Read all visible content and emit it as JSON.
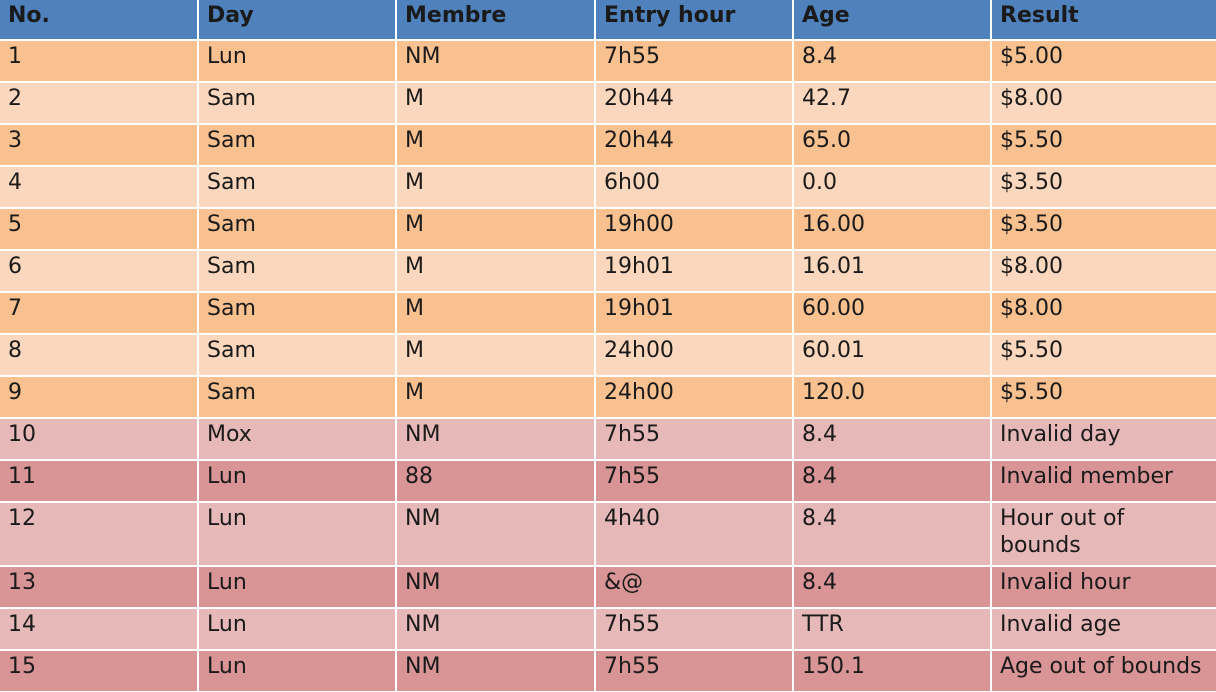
{
  "table": {
    "headers": [
      "No.",
      "Day",
      "Membre",
      "Entry hour",
      "Age",
      "Result"
    ],
    "rows": [
      {
        "no": "1",
        "day": "Lun",
        "membre": "NM",
        "entry_hour": "7h55",
        "age": "8.4",
        "result": "$5.00",
        "group": "valid",
        "shade": "odd"
      },
      {
        "no": "2",
        "day": "Sam",
        "membre": "M",
        "entry_hour": "20h44",
        "age": "42.7",
        "result": "$8.00",
        "group": "valid",
        "shade": "even"
      },
      {
        "no": "3",
        "day": "Sam",
        "membre": "M",
        "entry_hour": "20h44",
        "age": "65.0",
        "result": "$5.50",
        "group": "valid",
        "shade": "odd"
      },
      {
        "no": "4",
        "day": "Sam",
        "membre": "M",
        "entry_hour": "6h00",
        "age": "0.0",
        "result": "$3.50",
        "group": "valid",
        "shade": "even"
      },
      {
        "no": "5",
        "day": "Sam",
        "membre": "M",
        "entry_hour": "19h00",
        "age": "16.00",
        "result": "$3.50",
        "group": "valid",
        "shade": "odd"
      },
      {
        "no": "6",
        "day": "Sam",
        "membre": "M",
        "entry_hour": "19h01",
        "age": "16.01",
        "result": "$8.00",
        "group": "valid",
        "shade": "even"
      },
      {
        "no": "7",
        "day": "Sam",
        "membre": "M",
        "entry_hour": "19h01",
        "age": "60.00",
        "result": "$8.00",
        "group": "valid",
        "shade": "odd"
      },
      {
        "no": "8",
        "day": "Sam",
        "membre": "M",
        "entry_hour": "24h00",
        "age": "60.01",
        "result": "$5.50",
        "group": "valid",
        "shade": "even"
      },
      {
        "no": "9",
        "day": "Sam",
        "membre": "M",
        "entry_hour": "24h00",
        "age": "120.0",
        "result": "$5.50",
        "group": "valid",
        "shade": "odd"
      },
      {
        "no": "10",
        "day": "Mox",
        "membre": "NM",
        "entry_hour": "7h55",
        "age": "8.4",
        "result": "Invalid day",
        "group": "invalid",
        "shade": "light"
      },
      {
        "no": "11",
        "day": "Lun",
        "membre": "88",
        "entry_hour": "7h55",
        "age": "8.4",
        "result": "Invalid member",
        "group": "invalid",
        "shade": "dark"
      },
      {
        "no": "12",
        "day": "Lun",
        "membre": "NM",
        "entry_hour": "4h40",
        "age": "8.4",
        "result": "Hour out of bounds",
        "group": "invalid",
        "shade": "light"
      },
      {
        "no": "13",
        "day": "Lun",
        "membre": "NM",
        "entry_hour": "&@",
        "age": "8.4",
        "result": "Invalid hour",
        "group": "invalid",
        "shade": "dark"
      },
      {
        "no": "14",
        "day": "Lun",
        "membre": "NM",
        "entry_hour": "7h55",
        "age": "TTR",
        "result": "Invalid age",
        "group": "invalid",
        "shade": "light"
      },
      {
        "no": "15",
        "day": "Lun",
        "membre": "NM",
        "entry_hour": "7h55",
        "age": "150.1",
        "result": "Age out of bounds",
        "group": "invalid",
        "shade": "dark"
      }
    ]
  },
  "colors": {
    "header": "#4f81bd",
    "valid_odd": "#f9c090",
    "valid_even": "#fbd8bd",
    "invalid_light": "#e6b8b8",
    "invalid_dark": "#d99595"
  }
}
